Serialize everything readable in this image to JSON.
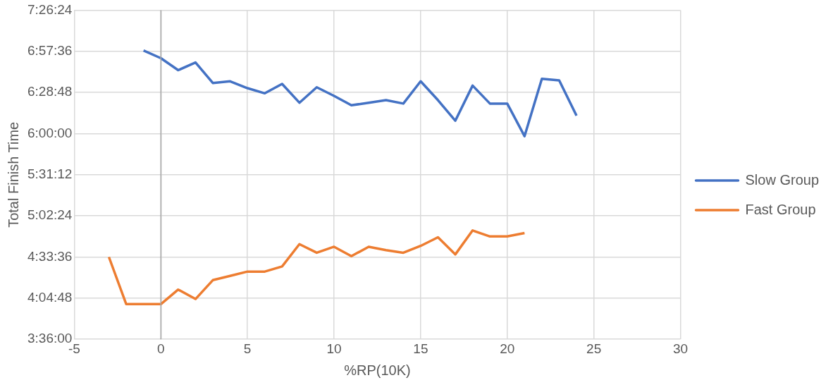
{
  "chart_data": {
    "type": "line",
    "xlabel": "%RP(10K)",
    "ylabel": "Total Finish Time",
    "xlim": [
      -5,
      30
    ],
    "xticks": [
      -5,
      0,
      5,
      10,
      15,
      20,
      25,
      30
    ],
    "ylim": [
      3.6,
      7.44
    ],
    "yticks": [
      {
        "value": 3.6,
        "label": "3:36:00"
      },
      {
        "value": 4.08,
        "label": "4:04:48"
      },
      {
        "value": 4.56,
        "label": "4:33:36"
      },
      {
        "value": 5.04,
        "label": "5:02:24"
      },
      {
        "value": 5.52,
        "label": "5:31:12"
      },
      {
        "value": 6.0,
        "label": "6:00:00"
      },
      {
        "value": 6.48,
        "label": "6:28:48"
      },
      {
        "value": 6.96,
        "label": "6:57:36"
      },
      {
        "value": 7.44,
        "label": "7:26:24"
      }
    ],
    "grid": true,
    "legend": "right",
    "marker": "none",
    "series": [
      {
        "name": "Slow Group",
        "color": "#4472c4",
        "x": [
          -1,
          0,
          1,
          2,
          3,
          4,
          5,
          6,
          7,
          8,
          9,
          10,
          11,
          12,
          13,
          14,
          15,
          16,
          17,
          18,
          19,
          20,
          21,
          22,
          23,
          24
        ],
        "values": [
          6.97,
          6.88,
          6.74,
          6.83,
          6.59,
          6.61,
          6.53,
          6.47,
          6.58,
          6.36,
          6.54,
          6.44,
          6.33,
          6.36,
          6.39,
          6.35,
          6.61,
          6.39,
          6.15,
          6.56,
          6.35,
          6.35,
          5.97,
          6.64,
          6.62,
          6.21
        ]
      },
      {
        "name": "Fast Group",
        "color": "#ed7d31",
        "x": [
          -3,
          -2,
          -1,
          0,
          1,
          2,
          3,
          4,
          5,
          6,
          7,
          8,
          9,
          10,
          11,
          12,
          13,
          14,
          15,
          16,
          17,
          18,
          19,
          20,
          21
        ],
        "values": [
          4.56,
          4.01,
          4.01,
          4.01,
          4.18,
          4.07,
          4.29,
          4.34,
          4.39,
          4.39,
          4.45,
          4.71,
          4.61,
          4.68,
          4.57,
          4.68,
          4.64,
          4.61,
          4.69,
          4.79,
          4.59,
          4.87,
          4.8,
          4.8,
          4.84
        ]
      }
    ]
  }
}
